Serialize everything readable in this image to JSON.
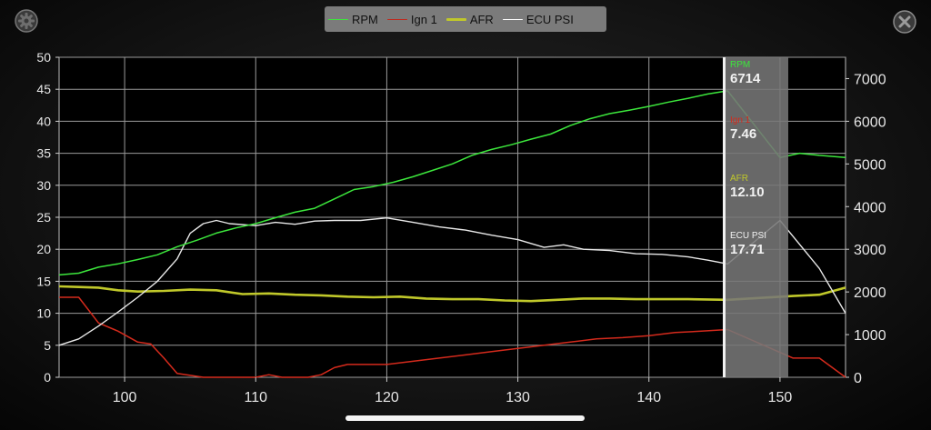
{
  "chart_data": {
    "type": "line",
    "xlim": [
      95,
      155
    ],
    "x_ticks": [
      "100",
      "110",
      "120",
      "130",
      "140",
      "150"
    ],
    "left_axis": {
      "ylim": [
        0,
        50
      ],
      "ticks": [
        "0",
        "5",
        "10",
        "15",
        "20",
        "25",
        "30",
        "35",
        "40",
        "45",
        "50"
      ]
    },
    "right_axis": {
      "ylim": [
        0,
        7500
      ],
      "ticks": [
        "0",
        "1000",
        "2000",
        "3000",
        "4000",
        "5000",
        "6000",
        "7000"
      ]
    },
    "grid": true,
    "legend_position": "top-center",
    "series": [
      {
        "name": "RPM",
        "axis": "right",
        "color": "#3ce63c",
        "points": [
          [
            95,
            2400
          ],
          [
            96.5,
            2440
          ],
          [
            98,
            2580
          ],
          [
            99.5,
            2660
          ],
          [
            101,
            2760
          ],
          [
            102.5,
            2870
          ],
          [
            104,
            3060
          ],
          [
            105.5,
            3210
          ],
          [
            107,
            3380
          ],
          [
            108.5,
            3500
          ],
          [
            110,
            3600
          ],
          [
            111.5,
            3740
          ],
          [
            113,
            3870
          ],
          [
            114.5,
            3960
          ],
          [
            116,
            4180
          ],
          [
            117.5,
            4400
          ],
          [
            119,
            4470
          ],
          [
            120.5,
            4570
          ],
          [
            122,
            4700
          ],
          [
            123.5,
            4850
          ],
          [
            125,
            5000
          ],
          [
            126.5,
            5200
          ],
          [
            128,
            5340
          ],
          [
            129.5,
            5450
          ],
          [
            131,
            5580
          ],
          [
            132.5,
            5700
          ],
          [
            134,
            5900
          ],
          [
            135.5,
            6060
          ],
          [
            137,
            6180
          ],
          [
            138.5,
            6260
          ],
          [
            140,
            6350
          ],
          [
            141.5,
            6450
          ],
          [
            143,
            6540
          ],
          [
            144.5,
            6640
          ],
          [
            146,
            6714
          ],
          [
            150,
            5150
          ],
          [
            151.5,
            5250
          ],
          [
            153,
            5200
          ],
          [
            155,
            5150
          ]
        ]
      },
      {
        "name": "Ign 1",
        "axis": "left",
        "color": "#d42a1c",
        "points": [
          [
            95,
            12.5
          ],
          [
            96.5,
            12.5
          ],
          [
            98,
            8.5
          ],
          [
            99.5,
            7.2
          ],
          [
            101,
            5.5
          ],
          [
            102,
            5.2
          ],
          [
            103,
            3.0
          ],
          [
            104,
            0.6
          ],
          [
            105,
            0.3
          ],
          [
            106,
            0
          ],
          [
            108,
            0
          ],
          [
            110,
            0
          ],
          [
            111,
            0.4
          ],
          [
            112,
            0
          ],
          [
            114,
            0
          ],
          [
            115,
            0.4
          ],
          [
            116,
            1.5
          ],
          [
            117,
            2
          ],
          [
            118,
            2
          ],
          [
            120,
            2
          ],
          [
            122,
            2.5
          ],
          [
            124,
            3
          ],
          [
            126,
            3.5
          ],
          [
            128,
            4
          ],
          [
            130,
            4.5
          ],
          [
            132,
            5
          ],
          [
            134,
            5.5
          ],
          [
            136,
            6
          ],
          [
            138,
            6.2
          ],
          [
            140,
            6.5
          ],
          [
            142,
            7
          ],
          [
            144,
            7.2
          ],
          [
            146,
            7.46
          ],
          [
            151,
            3.0
          ],
          [
            153,
            3.0
          ],
          [
            155,
            0
          ]
        ]
      },
      {
        "name": "AFR",
        "axis": "left",
        "color": "#c0c82a",
        "points": [
          [
            95,
            14.2
          ],
          [
            96.5,
            14.1
          ],
          [
            98,
            14.0
          ],
          [
            99.5,
            13.6
          ],
          [
            101,
            13.4
          ],
          [
            103,
            13.5
          ],
          [
            105,
            13.7
          ],
          [
            107,
            13.6
          ],
          [
            109,
            13.0
          ],
          [
            111,
            13.1
          ],
          [
            113,
            12.9
          ],
          [
            115,
            12.8
          ],
          [
            117,
            12.6
          ],
          [
            119,
            12.5
          ],
          [
            121,
            12.6
          ],
          [
            123,
            12.3
          ],
          [
            125,
            12.2
          ],
          [
            127,
            12.2
          ],
          [
            129,
            12.0
          ],
          [
            131,
            11.9
          ],
          [
            133,
            12.1
          ],
          [
            135,
            12.3
          ],
          [
            137,
            12.3
          ],
          [
            139,
            12.2
          ],
          [
            141,
            12.2
          ],
          [
            143,
            12.2
          ],
          [
            146,
            12.1
          ],
          [
            151,
            12.7
          ],
          [
            153,
            12.9
          ],
          [
            155,
            14.0
          ]
        ]
      },
      {
        "name": "ECU PSI",
        "axis": "left",
        "color": "#e8e8e8",
        "points": [
          [
            95,
            5.0
          ],
          [
            96.5,
            6.0
          ],
          [
            98,
            8.0
          ],
          [
            99.5,
            10.2
          ],
          [
            101,
            12.5
          ],
          [
            102.5,
            15.0
          ],
          [
            104,
            18.5
          ],
          [
            105,
            22.5
          ],
          [
            106,
            24.0
          ],
          [
            107,
            24.5
          ],
          [
            108,
            24.0
          ],
          [
            110,
            23.7
          ],
          [
            111.5,
            24.2
          ],
          [
            113,
            23.9
          ],
          [
            114.5,
            24.4
          ],
          [
            116,
            24.5
          ],
          [
            118,
            24.5
          ],
          [
            120,
            24.9
          ],
          [
            122,
            24.2
          ],
          [
            124,
            23.5
          ],
          [
            126,
            23.0
          ],
          [
            128,
            22.2
          ],
          [
            130,
            21.5
          ],
          [
            132,
            20.3
          ],
          [
            133.5,
            20.7
          ],
          [
            135,
            20.0
          ],
          [
            137,
            19.8
          ],
          [
            139,
            19.3
          ],
          [
            141,
            19.2
          ],
          [
            143,
            18.8
          ],
          [
            144.5,
            18.3
          ],
          [
            146,
            17.71
          ],
          [
            150,
            24.5
          ],
          [
            151,
            22.0
          ],
          [
            153,
            17.0
          ],
          [
            155,
            10.0
          ]
        ]
      }
    ],
    "cursor": {
      "x": 146
    }
  },
  "legend": [
    {
      "label": "RPM",
      "color": "#3ce63c",
      "thickness": 1
    },
    {
      "label": "Ign 1",
      "color": "#c0281c",
      "thickness": 1
    },
    {
      "label": "AFR",
      "color": "#c0c82a",
      "thickness": 3
    },
    {
      "label": "ECU PSI",
      "color": "#ffffff",
      "thickness": 1
    }
  ],
  "readouts": [
    {
      "label": "RPM",
      "value": "6714",
      "color": "#3ce63c"
    },
    {
      "label": "Ign 1",
      "value": "7.46",
      "color": "#d42a1c"
    },
    {
      "label": "AFR",
      "value": "12.10",
      "color": "#c0c82a"
    },
    {
      "label": "ECU PSI",
      "value": "17.71",
      "color": "#f2f2f2"
    }
  ],
  "icons": {
    "settings": "gear-icon",
    "close": "close-icon"
  }
}
